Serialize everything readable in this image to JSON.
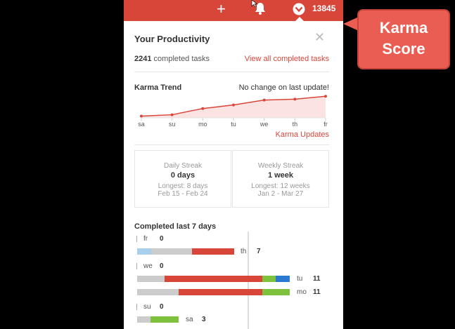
{
  "topbar": {
    "add_icon": "plus-icon",
    "notifications_icon": "bell-icon",
    "karma_icon": "karma-chevron-icon",
    "karma_score": "13845",
    "color": "#d8463a"
  },
  "callout": {
    "line1": "Karma",
    "line2": "Score",
    "color": "#e95d53"
  },
  "productivity": {
    "title": "Your Productivity",
    "close_icon": "close-icon",
    "completed_count": "2241",
    "completed_suffix": "completed tasks",
    "view_all_label": "View all completed tasks"
  },
  "karma_trend": {
    "title": "Karma Trend",
    "status": "No change on last update!",
    "updates_link": "Karma Updates",
    "days": [
      "sa",
      "su",
      "mo",
      "tu",
      "we",
      "th",
      "fr"
    ]
  },
  "chart_data": {
    "type": "area",
    "x": [
      "sa",
      "su",
      "mo",
      "tu",
      "we",
      "th",
      "fr"
    ],
    "values": [
      13400,
      13430,
      13570,
      13650,
      13760,
      13780,
      13845
    ],
    "color": "#d8463a"
  },
  "streaks": {
    "daily": {
      "label": "Daily Streak",
      "value": "0 days",
      "longest": "Longest: 8 days",
      "range": "Feb 15 - Feb 24"
    },
    "weekly": {
      "label": "Weekly Streak",
      "value": "1 week",
      "longest": "Longest: 12 weeks",
      "range": "Jan 2 - Mar 27"
    }
  },
  "last7": {
    "title": "Completed last 7 days",
    "days": [
      {
        "name": "fr",
        "count": "0"
      },
      {
        "name": "th",
        "count": "7"
      },
      {
        "name": "we",
        "count": "0"
      },
      {
        "name": "tu",
        "count": "11"
      },
      {
        "name": "mo",
        "count": "11"
      },
      {
        "name": "su",
        "count": "0"
      },
      {
        "name": "sa",
        "count": "3"
      }
    ],
    "colors": {
      "gray": "#cccccc",
      "red": "#d8463a",
      "green": "#7ec13c",
      "blue": "#2a7ad2",
      "light_blue": "#a8d0ec"
    }
  }
}
